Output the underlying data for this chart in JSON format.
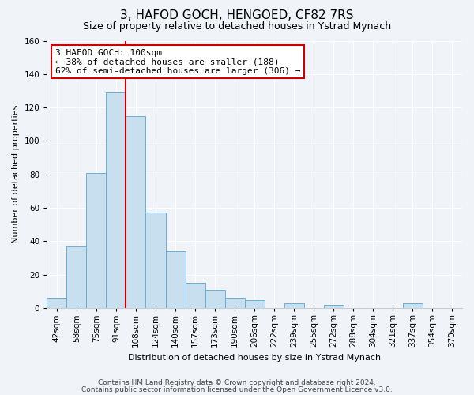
{
  "title": "3, HAFOD GOCH, HENGOED, CF82 7RS",
  "subtitle": "Size of property relative to detached houses in Ystrad Mynach",
  "xlabel": "Distribution of detached houses by size in Ystrad Mynach",
  "ylabel": "Number of detached properties",
  "footer_lines": [
    "Contains HM Land Registry data © Crown copyright and database right 2024.",
    "Contains public sector information licensed under the Open Government Licence v3.0."
  ],
  "bin_labels": [
    "42sqm",
    "58sqm",
    "75sqm",
    "91sqm",
    "108sqm",
    "124sqm",
    "140sqm",
    "157sqm",
    "173sqm",
    "190sqm",
    "206sqm",
    "222sqm",
    "239sqm",
    "255sqm",
    "272sqm",
    "288sqm",
    "304sqm",
    "321sqm",
    "337sqm",
    "354sqm",
    "370sqm"
  ],
  "bar_heights": [
    6,
    37,
    81,
    129,
    115,
    57,
    34,
    15,
    11,
    6,
    5,
    0,
    3,
    0,
    2,
    0,
    0,
    0,
    3,
    0,
    0
  ],
  "bar_color": "#c8dff0",
  "bar_edge_color": "#6baed6",
  "vline_color": "#cc0000",
  "ylim": [
    0,
    160
  ],
  "yticks": [
    0,
    20,
    40,
    60,
    80,
    100,
    120,
    140,
    160
  ],
  "annotation_line1": "3 HAFOD GOCH: 100sqm",
  "annotation_line2": "← 38% of detached houses are smaller (188)",
  "annotation_line3": "62% of semi-detached houses are larger (306) →",
  "annotation_box_color": "#ffffff",
  "annotation_box_edge": "#cc0000",
  "background_color": "#f0f4f8",
  "grid_color": "#ffffff",
  "title_fontsize": 11,
  "subtitle_fontsize": 9,
  "axis_label_fontsize": 8,
  "tick_fontsize": 7.5,
  "footer_fontsize": 6.5
}
